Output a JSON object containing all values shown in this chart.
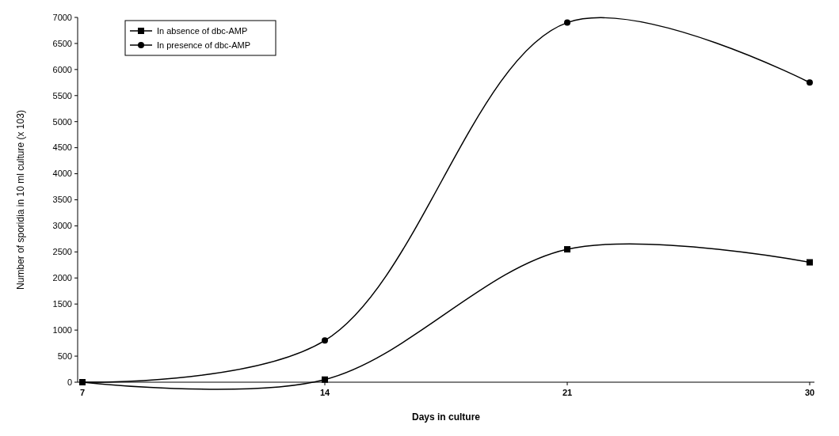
{
  "chart_data": {
    "type": "line",
    "xlabel": "Days in culture",
    "ylabel": "Number of sporidia in 10 ml culture (x 103)",
    "categories": [
      "7",
      "14",
      "21",
      "30"
    ],
    "series": [
      {
        "name": "In absence of dbc-AMP",
        "color": "#000000",
        "marker": "square",
        "values": [
          0,
          50,
          2550,
          2300
        ]
      },
      {
        "name": "In presence of dbc-AMP",
        "color": "#000000",
        "marker": "circle",
        "values": [
          0,
          800,
          6900,
          5750
        ]
      }
    ],
    "ylim": [
      0,
      7000
    ],
    "yticks": [
      0,
      500,
      1000,
      1500,
      2000,
      2500,
      3000,
      3500,
      4000,
      4500,
      5000,
      5500,
      6000,
      6500,
      7000
    ],
    "legend": "top left",
    "grid": false,
    "line_style": "solid"
  }
}
